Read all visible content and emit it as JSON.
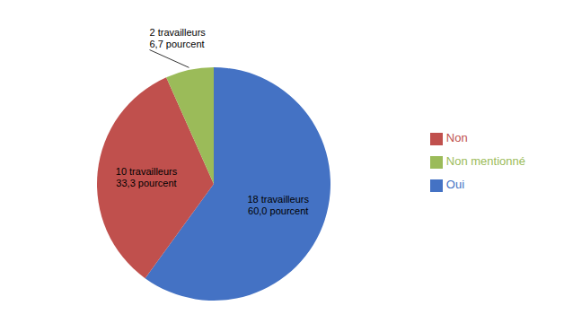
{
  "chart_data": {
    "type": "pie",
    "categories": [
      "Oui",
      "Non",
      "Non mentionné"
    ],
    "values": [
      18,
      10,
      2
    ],
    "value_labels": [
      "18 travailleurs\n60,0 pourcent",
      "10 travailleurs\n33,3 pourcent",
      "2 travailleurs\n6,7 pourcent"
    ],
    "colors": [
      "#4472C4",
      "#C0504D",
      "#9BBB59"
    ],
    "data_labels": true,
    "legend": "right"
  }
}
